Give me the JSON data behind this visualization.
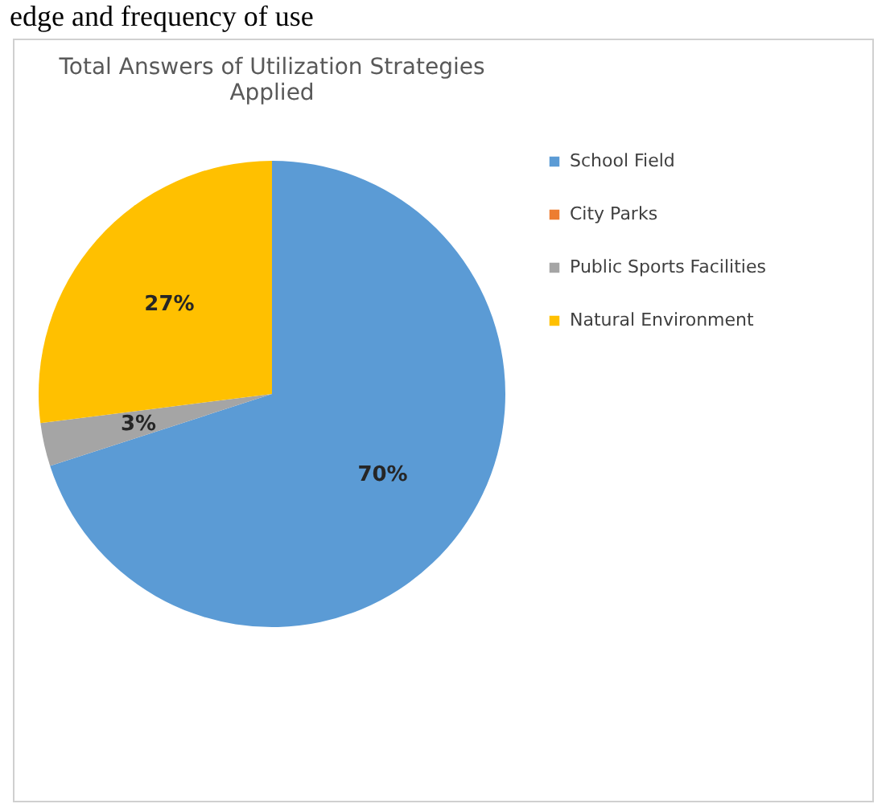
{
  "chart_data": {
    "type": "pie",
    "title": "Total Answers of Utilization Strategies Applied",
    "annotations": [
      "edge and frequency of use"
    ],
    "categories": [
      "School Field",
      "City Parks",
      "Public Sports Facilities",
      "Natural Environment"
    ],
    "values": [
      70,
      0,
      3,
      27
    ],
    "colors": [
      "#5b9bd5",
      "#ed7d31",
      "#a5a5a5",
      "#ffc000"
    ],
    "value_labels": [
      "70%",
      null,
      "3%",
      "27%"
    ],
    "legend": "right"
  }
}
